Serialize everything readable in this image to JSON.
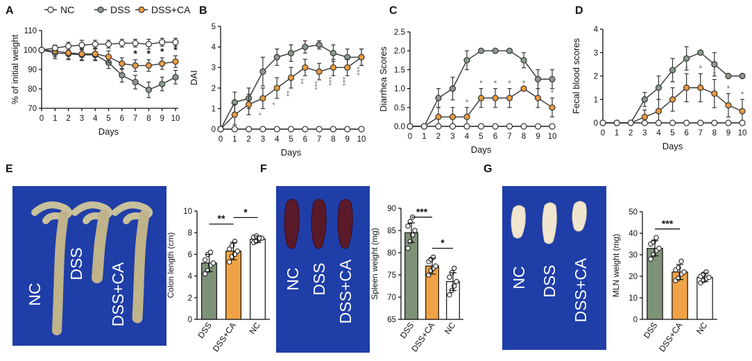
{
  "colors": {
    "nc": "#ffffff",
    "dss": "#8b9a8b",
    "dsscaLine": "#ec9a3e",
    "dssBar": "#7e9278",
    "caBar": "#f0a346",
    "photoBg": "#1f3ea8",
    "star": "#777777"
  },
  "chart_data": [
    {
      "panel": "A",
      "type": "line",
      "xlabel": "Days",
      "ylabel": "% of initial weight",
      "x": [
        0,
        1,
        2,
        3,
        4,
        5,
        6,
        7,
        8,
        9,
        10
      ],
      "ylim": [
        70,
        110
      ],
      "yticks": [
        70,
        80,
        90,
        100,
        110
      ],
      "legend": [
        "NC",
        "DSS",
        "DSS+CA"
      ],
      "series": [
        {
          "name": "NC",
          "values": [
            100,
            101,
            102,
            102.5,
            103,
            103,
            103.5,
            103.5,
            103,
            104,
            104
          ],
          "err": [
            0,
            1.5,
            2,
            2.5,
            2,
            2,
            2,
            2,
            2.5,
            2,
            2
          ]
        },
        {
          "name": "DSS",
          "values": [
            100,
            98.5,
            98,
            97.5,
            97.5,
            93.5,
            87,
            83.5,
            79.5,
            82.5,
            86
          ],
          "err": [
            0,
            3,
            3,
            3,
            3,
            3,
            3.5,
            3.5,
            4,
            3.5,
            3.5
          ]
        },
        {
          "name": "DSS+CA",
          "values": [
            100,
            99.5,
            98.5,
            98,
            98,
            96.5,
            93,
            92,
            92,
            93,
            94
          ],
          "err": [
            0,
            3,
            3,
            3,
            3,
            3,
            3,
            3,
            3,
            3,
            3
          ]
        }
      ],
      "stars": [
        {
          "x": 7,
          "label": "*"
        },
        {
          "x": 8,
          "label": "*"
        },
        {
          "x": 9,
          "label": "*"
        },
        {
          "x": 10,
          "label": "*"
        }
      ]
    },
    {
      "panel": "B",
      "type": "line",
      "xlabel": "Days",
      "ylabel": "DAI",
      "x": [
        0,
        1,
        2,
        3,
        4,
        5,
        6,
        7,
        8,
        9,
        10
      ],
      "ylim": [
        0,
        5
      ],
      "yticks": [
        0,
        1,
        2,
        3,
        4,
        5
      ],
      "series": [
        {
          "name": "NC",
          "values": [
            0,
            0,
            0,
            0,
            0,
            0,
            0,
            0,
            0,
            0,
            0
          ],
          "err": [
            0,
            0,
            0,
            0,
            0,
            0,
            0,
            0,
            0,
            0,
            0
          ]
        },
        {
          "name": "DSS",
          "values": [
            0,
            1.3,
            1.5,
            2.8,
            3.5,
            3.7,
            4,
            4.1,
            3.7,
            3.5,
            3.5
          ],
          "err": [
            0,
            0.5,
            0.5,
            0.7,
            0.4,
            0.4,
            0.3,
            0.2,
            0.4,
            0.4,
            0.4
          ]
        },
        {
          "name": "DSS+CA",
          "values": [
            0,
            0.7,
            1.2,
            1.5,
            2,
            2.5,
            3,
            2.8,
            3,
            3,
            3.5
          ],
          "err": [
            0,
            0.5,
            0.5,
            0.5,
            0.5,
            0.5,
            0.4,
            0.4,
            0.4,
            0.4,
            0.4
          ]
        }
      ],
      "stars": [
        {
          "x": 3,
          "label": "*"
        },
        {
          "x": 4,
          "label": "*"
        },
        {
          "x": 5,
          "label": "**"
        },
        {
          "x": 6,
          "label": "**"
        },
        {
          "x": 7,
          "label": "***"
        },
        {
          "x": 8,
          "label": "***"
        },
        {
          "x": 9,
          "label": "***"
        },
        {
          "x": 10,
          "label": "***"
        }
      ]
    },
    {
      "panel": "C",
      "type": "line",
      "xlabel": "Days",
      "ylabel": "Diarrhea Scores",
      "x": [
        0,
        1,
        2,
        3,
        4,
        5,
        6,
        7,
        8,
        9,
        10
      ],
      "ylim": [
        0,
        2.5
      ],
      "yticks": [
        0,
        0.5,
        1,
        1.5,
        2,
        2.5
      ],
      "yticklabels": [
        "0.0",
        "0.5",
        "1.0",
        "1.5",
        "2.0",
        "2.5"
      ],
      "series": [
        {
          "name": "NC",
          "values": [
            0,
            0,
            0,
            0,
            0,
            0,
            0,
            0,
            0,
            0,
            0
          ],
          "err": [
            0,
            0,
            0,
            0,
            0,
            0,
            0,
            0,
            0,
            0,
            0
          ]
        },
        {
          "name": "DSS",
          "values": [
            0,
            0,
            0.75,
            1,
            1.75,
            2,
            2,
            2,
            1.75,
            1.25,
            1.25
          ],
          "err": [
            0,
            0,
            0.25,
            0.3,
            0.25,
            0,
            0,
            0,
            0.2,
            0.25,
            0.25
          ]
        },
        {
          "name": "DSS+CA",
          "values": [
            0,
            0,
            0.25,
            0.25,
            0.25,
            0.75,
            0.75,
            0.75,
            1,
            0.75,
            0.5
          ],
          "err": [
            0,
            0,
            0.25,
            0.25,
            0.25,
            0.25,
            0.25,
            0.25,
            0,
            0.25,
            0.25
          ]
        }
      ],
      "stars": [
        {
          "x": 4,
          "label": "*"
        },
        {
          "x": 5,
          "label": "*"
        },
        {
          "x": 6,
          "label": "*"
        },
        {
          "x": 7,
          "label": "*"
        },
        {
          "x": 8,
          "label": "*"
        },
        {
          "x": 9,
          "label": "*"
        },
        {
          "x": 10,
          "label": "*"
        }
      ]
    },
    {
      "panel": "D",
      "type": "line",
      "xlabel": "Days",
      "ylabel": "Fecal blood scores",
      "x": [
        0,
        1,
        2,
        3,
        4,
        5,
        6,
        7,
        8,
        9,
        10
      ],
      "ylim": [
        0,
        4
      ],
      "yticks": [
        0,
        1,
        2,
        3,
        4
      ],
      "series": [
        {
          "name": "NC",
          "values": [
            0,
            0,
            0,
            0,
            0,
            0,
            0,
            0,
            0,
            0,
            0
          ],
          "err": [
            0,
            0,
            0,
            0,
            0,
            0,
            0,
            0,
            0,
            0,
            0
          ]
        },
        {
          "name": "DSS",
          "values": [
            0,
            0,
            0,
            1,
            1.5,
            2.25,
            2.75,
            3,
            2.5,
            2,
            2
          ],
          "err": [
            0,
            0,
            0,
            0.3,
            0.5,
            0.5,
            0.5,
            0,
            0.5,
            0,
            0
          ]
        },
        {
          "name": "DSS+CA",
          "values": [
            0,
            0,
            0,
            0.25,
            0.5,
            1,
            1.5,
            1.5,
            1.25,
            0.75,
            0.5
          ],
          "err": [
            0,
            0,
            0,
            0.3,
            0.5,
            0.5,
            0.6,
            0.6,
            0.6,
            0.5,
            0.5
          ]
        }
      ],
      "stars": [
        {
          "x": 5,
          "label": "*"
        },
        {
          "x": 6,
          "label": "*"
        },
        {
          "x": 7,
          "label": "*"
        },
        {
          "x": 8,
          "label": "*"
        },
        {
          "x": 9,
          "label": "*"
        },
        {
          "x": 10,
          "label": "*"
        }
      ]
    },
    {
      "panel": "E",
      "type": "bar",
      "ylabel": "Colon length (cm)",
      "categories": [
        "DSS",
        "DSS+CA",
        "NC"
      ],
      "values": [
        5.2,
        6.3,
        7.4
      ],
      "err": [
        0.8,
        0.8,
        0.3
      ],
      "points": [
        [
          4.2,
          4.5,
          5.0,
          5.2,
          5.5,
          6.0,
          6.2
        ],
        [
          5.3,
          5.8,
          6.0,
          6.3,
          6.5,
          6.8,
          7.2
        ],
        [
          7.1,
          7.2,
          7.4,
          7.5,
          7.6,
          7.7,
          7.5
        ]
      ],
      "ylim": [
        0,
        10
      ],
      "yticks": [
        0,
        2,
        4,
        6,
        8,
        10
      ],
      "brackets": [
        {
          "from": 0,
          "to": 1,
          "label": "**",
          "level": 8.8
        },
        {
          "from": 1,
          "to": 2,
          "label": "*",
          "level": 9.4
        }
      ],
      "photo_labels": [
        "NC",
        "DSS",
        "DSS+CA"
      ]
    },
    {
      "panel": "F",
      "type": "bar",
      "ylabel": "Spleen weight (mg)",
      "categories": [
        "DSS",
        "DSS+CA",
        "NC"
      ],
      "values": [
        84.5,
        77,
        73.5
      ],
      "err": [
        2.2,
        1.8,
        2
      ],
      "points": [
        [
          81,
          82.5,
          84,
          85,
          86,
          87,
          88
        ],
        [
          75,
          76,
          76.5,
          77,
          78,
          78.5,
          79
        ],
        [
          70.5,
          71.5,
          72.5,
          73.5,
          74.5,
          75.5,
          76.5
        ]
      ],
      "ylim": [
        65,
        90
      ],
      "yticks": [
        65,
        70,
        75,
        80,
        85,
        90
      ],
      "brackets": [
        {
          "from": 0,
          "to": 1,
          "label": "***",
          "level": 88
        },
        {
          "from": 1,
          "to": 2,
          "label": "*",
          "level": 81
        }
      ],
      "photo_labels": [
        "NC",
        "DSS",
        "DSS+CA"
      ]
    },
    {
      "panel": "G",
      "type": "bar",
      "ylabel": "MLN weight (mg)",
      "categories": [
        "DSS",
        "DSS+CA",
        "NC"
      ],
      "values": [
        33,
        22,
        19.5
      ],
      "err": [
        3.5,
        3.5,
        2
      ],
      "points": [
        [
          28,
          30,
          32,
          33,
          35,
          36,
          38
        ],
        [
          18,
          19,
          21,
          22,
          23,
          24,
          27
        ],
        [
          17,
          18,
          19,
          19.5,
          20,
          21,
          22
        ]
      ],
      "ylim": [
        0,
        50
      ],
      "yticks": [
        0,
        10,
        20,
        30,
        40,
        50
      ],
      "brackets": [
        {
          "from": 0,
          "to": 1,
          "label": "***",
          "level": 42
        }
      ],
      "photo_labels": [
        "NC",
        "DSS",
        "DSS+CA"
      ]
    }
  ]
}
